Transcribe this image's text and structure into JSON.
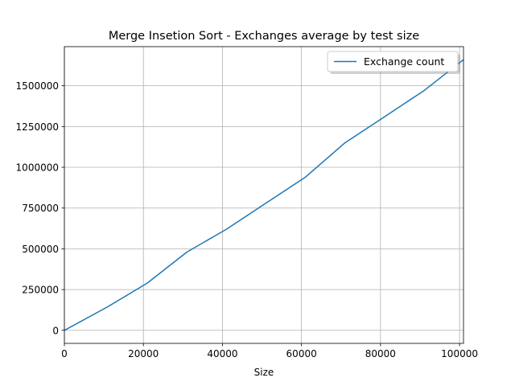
{
  "chart_data": {
    "type": "line",
    "title": "Merge Insetion Sort - Exchanges average by test size",
    "xlabel": "Size",
    "ylabel": "",
    "xlim": [
      0,
      101000
    ],
    "ylim": [
      -80000,
      1740000
    ],
    "xticks": [
      0,
      20000,
      40000,
      60000,
      80000,
      100000
    ],
    "yticks": [
      0,
      250000,
      500000,
      750000,
      1000000,
      1250000,
      1500000
    ],
    "grid": true,
    "legend_position": "top-right",
    "series": [
      {
        "name": "Exchange count",
        "color": "#1f77b4",
        "x": [
          0,
          11000,
          21000,
          31000,
          41000,
          51000,
          61000,
          71000,
          81000,
          91000,
          101000
        ],
        "y": [
          0,
          145000,
          290000,
          480000,
          620000,
          780000,
          940000,
          1150000,
          1310000,
          1470000,
          1660000
        ]
      }
    ]
  }
}
